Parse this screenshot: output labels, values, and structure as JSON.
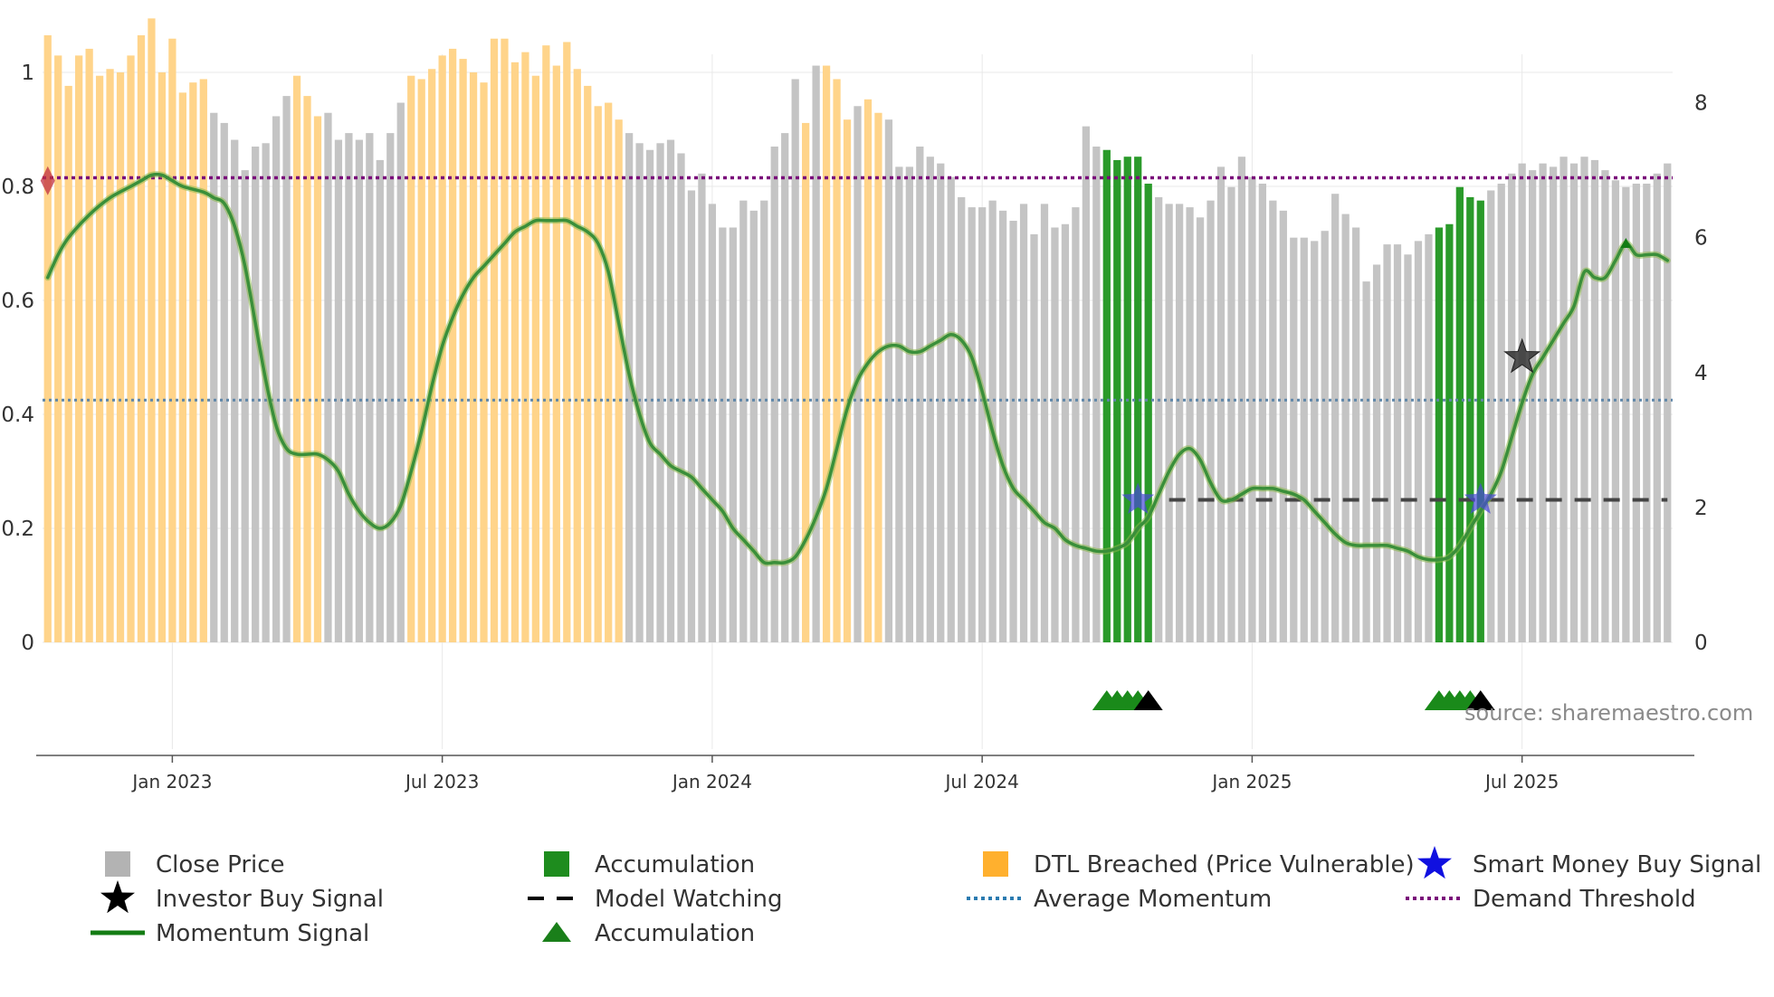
{
  "chart_data": {
    "type": "bar",
    "title": "",
    "source": "source: sharemaestro.com",
    "left_axis": {
      "ticks": [
        "0",
        "0.2",
        "0.4",
        "0.6",
        "0.8",
        "1"
      ],
      "range": [
        0,
        1
      ]
    },
    "right_axis": {
      "ticks": [
        "0",
        "2",
        "4",
        "6",
        "8"
      ],
      "range": [
        0,
        8.45
      ]
    },
    "x_axis": {
      "ticks": [
        "Jan 2023",
        "Jul 2023",
        "Jan 2024",
        "Jul 2024",
        "Jan 2025",
        "Jul 2025"
      ],
      "tick_weeks": [
        12,
        38,
        64,
        90,
        116,
        142
      ]
    },
    "weeks_count": 157,
    "close_price": [
      9.0,
      8.7,
      8.25,
      8.7,
      8.8,
      8.4,
      8.5,
      8.45,
      8.7,
      9.0,
      9.25,
      8.45,
      8.95,
      8.15,
      8.3,
      8.35,
      7.85,
      7.7,
      7.45,
      7.0,
      7.35,
      7.4,
      7.8,
      8.1,
      8.4,
      8.1,
      7.8,
      7.85,
      7.45,
      7.55,
      7.45,
      7.55,
      7.15,
      7.55,
      8.0,
      8.4,
      8.35,
      8.5,
      8.7,
      8.8,
      8.65,
      8.45,
      8.3,
      8.95,
      8.95,
      8.6,
      8.75,
      8.4,
      8.85,
      8.55,
      8.9,
      8.5,
      8.25,
      7.95,
      8.0,
      7.75,
      7.55,
      7.4,
      7.3,
      7.4,
      7.45,
      7.25,
      6.7,
      6.95,
      6.5,
      6.15,
      6.15,
      6.55,
      6.4,
      6.55,
      7.35,
      7.55,
      8.35,
      7.7,
      8.55,
      8.55,
      8.35,
      7.75,
      7.95,
      8.05,
      7.85,
      7.75,
      7.05,
      7.05,
      7.35,
      7.2,
      7.1,
      6.9,
      6.6,
      6.45,
      6.45,
      6.55,
      6.4,
      6.25,
      6.5,
      6.05,
      6.5,
      6.15,
      6.2,
      6.45,
      7.65,
      7.35,
      7.3,
      7.15,
      7.2,
      7.2,
      6.8,
      6.6,
      6.5,
      6.5,
      6.45,
      6.3,
      6.55,
      7.05,
      6.75,
      7.2,
      6.9,
      6.8,
      6.55,
      6.4,
      6.0,
      6.0,
      5.95,
      6.1,
      6.65,
      6.35,
      6.15,
      5.35,
      5.6,
      5.9,
      5.9,
      5.75,
      5.95,
      6.05,
      6.15,
      6.2,
      6.75,
      6.6,
      6.55,
      6.7,
      6.8,
      6.95,
      7.1,
      7.0,
      7.1,
      7.05,
      7.2,
      7.1,
      7.2,
      7.15,
      7.0,
      6.85,
      6.75,
      6.8,
      6.8,
      6.95,
      7.1
    ],
    "dtl_breached_weeks": [
      [
        0,
        15
      ],
      [
        24,
        26
      ],
      [
        35,
        55
      ],
      [
        73,
        73
      ],
      [
        75,
        77
      ],
      [
        79,
        80
      ]
    ],
    "accumulation_weeks": [
      [
        102,
        106
      ],
      [
        134,
        138
      ]
    ],
    "momentum_signal": [
      [
        0,
        0.64
      ],
      [
        1,
        0.68
      ],
      [
        2,
        0.71
      ],
      [
        4,
        0.75
      ],
      [
        6,
        0.78
      ],
      [
        8,
        0.8
      ],
      [
        9,
        0.81
      ],
      [
        10,
        0.82
      ],
      [
        11,
        0.82
      ],
      [
        12,
        0.81
      ],
      [
        13,
        0.8
      ],
      [
        15,
        0.79
      ],
      [
        16,
        0.78
      ],
      [
        17,
        0.77
      ],
      [
        18,
        0.73
      ],
      [
        19,
        0.66
      ],
      [
        20,
        0.56
      ],
      [
        21,
        0.46
      ],
      [
        22,
        0.38
      ],
      [
        23,
        0.34
      ],
      [
        24,
        0.33
      ],
      [
        25,
        0.33
      ],
      [
        26,
        0.33
      ],
      [
        27,
        0.32
      ],
      [
        28,
        0.3
      ],
      [
        29,
        0.26
      ],
      [
        30,
        0.23
      ],
      [
        31,
        0.21
      ],
      [
        32,
        0.2
      ],
      [
        33,
        0.21
      ],
      [
        34,
        0.24
      ],
      [
        35,
        0.3
      ],
      [
        36,
        0.37
      ],
      [
        37,
        0.45
      ],
      [
        38,
        0.52
      ],
      [
        39,
        0.57
      ],
      [
        40,
        0.61
      ],
      [
        41,
        0.64
      ],
      [
        42,
        0.66
      ],
      [
        43,
        0.68
      ],
      [
        44,
        0.7
      ],
      [
        45,
        0.72
      ],
      [
        46,
        0.73
      ],
      [
        47,
        0.74
      ],
      [
        48,
        0.74
      ],
      [
        49,
        0.74
      ],
      [
        50,
        0.74
      ],
      [
        51,
        0.73
      ],
      [
        52,
        0.72
      ],
      [
        53,
        0.7
      ],
      [
        54,
        0.65
      ],
      [
        55,
        0.56
      ],
      [
        56,
        0.47
      ],
      [
        57,
        0.4
      ],
      [
        58,
        0.35
      ],
      [
        59,
        0.33
      ],
      [
        60,
        0.31
      ],
      [
        61,
        0.3
      ],
      [
        62,
        0.29
      ],
      [
        63,
        0.27
      ],
      [
        64,
        0.25
      ],
      [
        65,
        0.23
      ],
      [
        66,
        0.2
      ],
      [
        67,
        0.18
      ],
      [
        68,
        0.16
      ],
      [
        69,
        0.14
      ],
      [
        70,
        0.14
      ],
      [
        71,
        0.14
      ],
      [
        72,
        0.15
      ],
      [
        73,
        0.18
      ],
      [
        74,
        0.22
      ],
      [
        75,
        0.27
      ],
      [
        76,
        0.34
      ],
      [
        77,
        0.41
      ],
      [
        78,
        0.46
      ],
      [
        79,
        0.49
      ],
      [
        80,
        0.51
      ],
      [
        81,
        0.52
      ],
      [
        82,
        0.52
      ],
      [
        83,
        0.51
      ],
      [
        84,
        0.51
      ],
      [
        85,
        0.52
      ],
      [
        86,
        0.53
      ],
      [
        87,
        0.54
      ],
      [
        88,
        0.53
      ],
      [
        89,
        0.5
      ],
      [
        90,
        0.44
      ],
      [
        91,
        0.37
      ],
      [
        92,
        0.31
      ],
      [
        93,
        0.27
      ],
      [
        94,
        0.25
      ],
      [
        95,
        0.23
      ],
      [
        96,
        0.21
      ],
      [
        97,
        0.2
      ],
      [
        98,
        0.18
      ],
      [
        99,
        0.17
      ],
      [
        100,
        0.165
      ],
      [
        101,
        0.16
      ],
      [
        102,
        0.16
      ],
      [
        103,
        0.165
      ],
      [
        104,
        0.175
      ],
      [
        105,
        0.2
      ],
      [
        106,
        0.22
      ],
      [
        107,
        0.26
      ],
      [
        108,
        0.3
      ],
      [
        109,
        0.33
      ],
      [
        110,
        0.34
      ],
      [
        111,
        0.32
      ],
      [
        112,
        0.28
      ],
      [
        113,
        0.25
      ],
      [
        114,
        0.25
      ],
      [
        115,
        0.26
      ],
      [
        116,
        0.27
      ],
      [
        117,
        0.27
      ],
      [
        118,
        0.27
      ],
      [
        119,
        0.265
      ],
      [
        120,
        0.26
      ],
      [
        121,
        0.25
      ],
      [
        122,
        0.23
      ],
      [
        123,
        0.21
      ],
      [
        124,
        0.19
      ],
      [
        125,
        0.175
      ],
      [
        126,
        0.17
      ],
      [
        127,
        0.17
      ],
      [
        128,
        0.17
      ],
      [
        129,
        0.17
      ],
      [
        130,
        0.165
      ],
      [
        131,
        0.16
      ],
      [
        132,
        0.15
      ],
      [
        133,
        0.145
      ],
      [
        134,
        0.145
      ],
      [
        135,
        0.15
      ],
      [
        136,
        0.17
      ],
      [
        137,
        0.2
      ],
      [
        138,
        0.23
      ],
      [
        139,
        0.26
      ],
      [
        140,
        0.3
      ],
      [
        141,
        0.36
      ],
      [
        142,
        0.42
      ],
      [
        143,
        0.47
      ],
      [
        144,
        0.5
      ],
      [
        145,
        0.53
      ],
      [
        146,
        0.56
      ],
      [
        147,
        0.59
      ],
      [
        148,
        0.65
      ],
      [
        149,
        0.64
      ],
      [
        150,
        0.64
      ],
      [
        151,
        0.67
      ],
      [
        152,
        0.7
      ],
      [
        153,
        0.68
      ],
      [
        154,
        0.68
      ],
      [
        155,
        0.68
      ],
      [
        156,
        0.67
      ]
    ],
    "average_momentum": 0.425,
    "demand_threshold": 0.815,
    "model_watching": {
      "level": 0.25,
      "from_week": 108,
      "to_week": 156
    },
    "investor_buy_signals": [
      {
        "week": 142,
        "value": 0.5
      }
    ],
    "smart_money_buy_signals": [
      {
        "week": 105,
        "value": 0.25
      },
      {
        "week": 138,
        "value": 0.25
      }
    ],
    "demand_breach_markers": [
      {
        "week": 0,
        "value": 0.81
      }
    ],
    "momentum_peak_markers": [
      {
        "week": 152,
        "value": 0.7
      }
    ],
    "accumulation_markers": [
      {
        "week": 102,
        "kind": "accumulation"
      },
      {
        "week": 103,
        "kind": "accumulation"
      },
      {
        "week": 104,
        "kind": "accumulation"
      },
      {
        "week": 105,
        "kind": "accumulation"
      },
      {
        "week": 106,
        "kind": "investor"
      },
      {
        "week": 134,
        "kind": "accumulation"
      },
      {
        "week": 135,
        "kind": "accumulation"
      },
      {
        "week": 136,
        "kind": "accumulation"
      },
      {
        "week": 137,
        "kind": "accumulation"
      },
      {
        "week": 138,
        "kind": "investor"
      }
    ],
    "legend": [
      {
        "label": "Close Price",
        "symbol": "square",
        "color": "#b3b3b3"
      },
      {
        "label": "Accumulation",
        "symbol": "square",
        "color": "#1e8c1e"
      },
      {
        "label": "DTL Breached (Price Vulnerable)",
        "symbol": "square",
        "color": "#ffb02e"
      },
      {
        "label": "Smart Money Buy Signal",
        "symbol": "star",
        "color": "#1010e0"
      },
      {
        "label": "Investor Buy Signal",
        "symbol": "star",
        "color": "#000000"
      },
      {
        "label": "Model Watching",
        "symbol": "dash",
        "color": "#000000"
      },
      {
        "label": "Average Momentum",
        "symbol": "dot",
        "color": "#2b7bb0"
      },
      {
        "label": "Demand Threshold",
        "symbol": "dot",
        "color": "#7a0a7a"
      },
      {
        "label": "Momentum Signal",
        "symbol": "line",
        "color": "#137c13"
      },
      {
        "label": "Accumulation",
        "symbol": "triangle",
        "color": "#1a7f1a"
      }
    ],
    "colors": {
      "close": "#c4c4c4",
      "dtl": "#ffd48a",
      "accumulation": "#2a9a2a",
      "momentum": "#3a8f3a",
      "average": "#5f86a8",
      "threshold": "#7a0a7a",
      "watching": "#444444",
      "axis": "#555555",
      "grid": "#e8e8e8"
    }
  }
}
